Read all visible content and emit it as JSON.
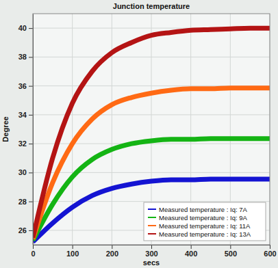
{
  "chart_data": {
    "type": "line",
    "title": "Junction temperature",
    "x_label": "secs",
    "y_label": "Degree",
    "x": [
      0,
      50,
      100,
      150,
      200,
      250,
      300,
      350,
      400,
      450,
      500,
      550,
      600
    ],
    "series": [
      {
        "name": "Measured temperature : Iq: 7A",
        "color": "#1414d2",
        "values": [
          25.2,
          26.5,
          27.6,
          28.4,
          28.9,
          29.2,
          29.4,
          29.5,
          29.5,
          29.55,
          29.55,
          29.55,
          29.55
        ]
      },
      {
        "name": "Measured temperature : Iq: 9A",
        "color": "#14b414",
        "values": [
          25.3,
          27.8,
          29.7,
          30.9,
          31.6,
          32.0,
          32.2,
          32.3,
          32.3,
          32.35,
          32.35,
          32.35,
          32.35
        ]
      },
      {
        "name": "Measured temperature : Iq: 11A",
        "color": "#ff6a14",
        "values": [
          25.4,
          29.3,
          32.0,
          33.7,
          34.7,
          35.2,
          35.5,
          35.7,
          35.8,
          35.8,
          35.85,
          35.85,
          35.85
        ]
      },
      {
        "name": "Measured temperature : Iq: 13A",
        "color": "#b41414",
        "values": [
          25.5,
          31.0,
          34.8,
          37.0,
          38.3,
          39.0,
          39.5,
          39.7,
          39.85,
          39.9,
          39.95,
          40.0,
          40.0
        ]
      }
    ],
    "xlim": [
      0,
      600
    ],
    "xticks": [
      0,
      100,
      200,
      300,
      400,
      500,
      600
    ],
    "ylim": [
      25,
      41
    ],
    "yticks": [
      26,
      28,
      30,
      32,
      34,
      36,
      38,
      40
    ],
    "grid": true,
    "legend": "bottom-right"
  }
}
